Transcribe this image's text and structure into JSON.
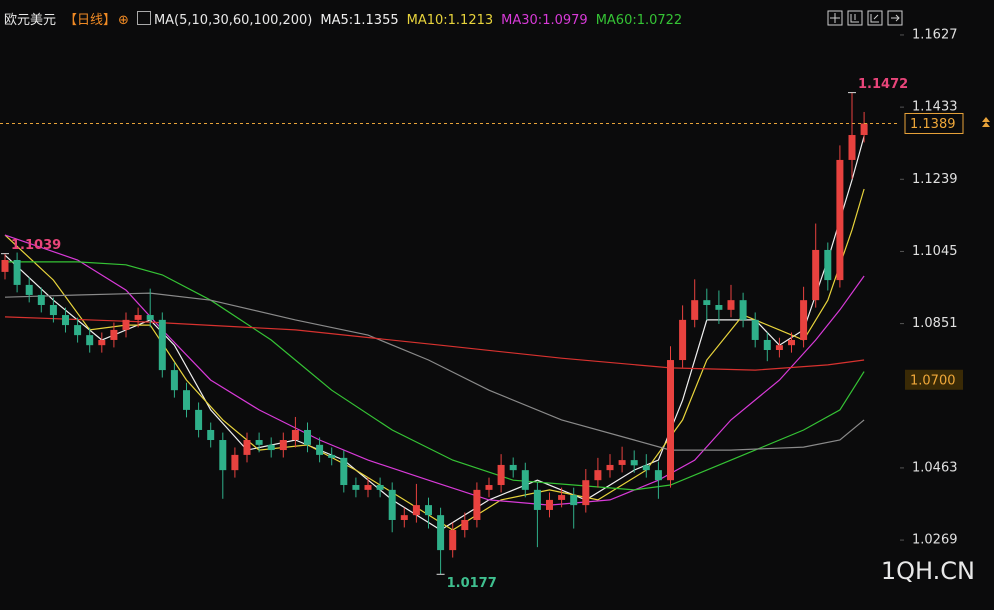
{
  "chart_data": {
    "type": "candlestick",
    "title": "欧元美元",
    "period": "【日线】",
    "indicator": "MA(5,10,30,60,100,200)",
    "up_color": "#e8423f",
    "down_color": "#2fb08a",
    "ylim": [
      1.0081,
      1.1721
    ],
    "yticks": [
      1.0269,
      1.0463,
      1.0851,
      1.1045,
      1.1239,
      1.1433,
      1.1627
    ],
    "open": [
      1.099,
      1.1022,
      1.0955,
      1.0928,
      1.0901,
      1.0874,
      1.0847,
      1.082,
      1.0793,
      1.0807,
      1.0834,
      1.0861,
      1.0874,
      1.0861,
      1.0726,
      1.0672,
      1.0619,
      1.0565,
      1.0538,
      1.0457,
      1.0498,
      1.0538,
      1.0525,
      1.0511,
      1.0538,
      1.0565,
      1.0525,
      1.0498,
      1.049,
      1.0417,
      1.0404,
      1.0417,
      1.0404,
      1.0323,
      1.0336,
      1.0363,
      1.0336,
      1.0242,
      1.0296,
      1.0323,
      1.0404,
      1.0417,
      1.0471,
      1.0457,
      1.0404,
      1.035,
      1.0377,
      1.039,
      1.0363,
      1.043,
      1.0457,
      1.0471,
      1.0484,
      1.047,
      1.0457,
      1.043,
      1.0753,
      1.0861,
      1.0914,
      1.0901,
      1.0888,
      1.0914,
      1.0861,
      1.0807,
      1.078,
      1.0793,
      1.0807,
      1.0914,
      1.1049,
      1.0968,
      1.1291,
      1.1358
    ],
    "high": [
      1.1039,
      1.1042,
      1.0975,
      1.0948,
      1.0921,
      1.0894,
      1.0867,
      1.084,
      1.0827,
      1.0854,
      1.0881,
      1.0894,
      1.0945,
      1.0881,
      1.0746,
      1.0692,
      1.0639,
      1.0585,
      1.0558,
      1.0518,
      1.0558,
      1.0558,
      1.0545,
      1.0558,
      1.06,
      1.0585,
      1.0545,
      1.0518,
      1.051,
      1.0437,
      1.0437,
      1.0437,
      1.0424,
      1.0356,
      1.042,
      1.0383,
      1.0356,
      1.0316,
      1.0343,
      1.0424,
      1.0437,
      1.05,
      1.0491,
      1.0477,
      1.0424,
      1.0397,
      1.041,
      1.041,
      1.046,
      1.049,
      1.05,
      1.052,
      1.051,
      1.05,
      1.048,
      1.079,
      1.09,
      1.097,
      1.0945,
      1.094,
      1.0955,
      1.0934,
      1.0881,
      1.0827,
      1.0813,
      1.0827,
      1.095,
      1.112,
      1.1069,
      1.133,
      1.1472,
      1.142
    ],
    "low": [
      1.097,
      1.0935,
      1.0908,
      1.0881,
      1.0854,
      1.0827,
      1.08,
      1.0773,
      1.0773,
      1.0787,
      1.0814,
      1.0841,
      1.0841,
      1.0706,
      1.0652,
      1.0599,
      1.0545,
      1.0518,
      1.038,
      1.0437,
      1.0478,
      1.0505,
      1.0491,
      1.0491,
      1.0518,
      1.0505,
      1.0478,
      1.047,
      1.0397,
      1.0384,
      1.0384,
      1.0384,
      1.029,
      1.0303,
      1.0316,
      1.03,
      1.0177,
      1.0222,
      1.0276,
      1.0303,
      1.0384,
      1.0397,
      1.0437,
      1.0384,
      1.025,
      1.033,
      1.0357,
      1.03,
      1.0343,
      1.041,
      1.0437,
      1.0451,
      1.045,
      1.0437,
      1.038,
      1.041,
      1.0733,
      1.0841,
      1.086,
      1.085,
      1.0868,
      1.0841,
      1.0787,
      1.075,
      1.076,
      1.0773,
      1.0787,
      1.0894,
      1.094,
      1.0948,
      1.124,
      1.1338
    ],
    "close": [
      1.1022,
      1.0955,
      1.0928,
      1.0901,
      1.0874,
      1.0847,
      1.082,
      1.0793,
      1.0807,
      1.0834,
      1.0861,
      1.0874,
      1.0861,
      1.0726,
      1.0672,
      1.0619,
      1.0565,
      1.0538,
      1.0457,
      1.0498,
      1.0538,
      1.0525,
      1.0511,
      1.0538,
      1.0565,
      1.0525,
      1.0498,
      1.049,
      1.0417,
      1.0404,
      1.0417,
      1.0404,
      1.0323,
      1.0336,
      1.0363,
      1.0336,
      1.0242,
      1.0296,
      1.0323,
      1.0404,
      1.0417,
      1.0471,
      1.0457,
      1.0404,
      1.035,
      1.0377,
      1.039,
      1.0363,
      1.043,
      1.0457,
      1.0471,
      1.0484,
      1.047,
      1.0457,
      1.043,
      1.0753,
      1.0861,
      1.0914,
      1.0901,
      1.0888,
      1.0914,
      1.0861,
      1.0807,
      1.078,
      1.0793,
      1.0807,
      1.0914,
      1.1049,
      1.0968,
      1.1291,
      1.1358,
      1.1389
    ],
    "series": [
      {
        "name": "MA5:1.1355",
        "color": "#f0f0f0",
        "x": [
          0,
          4,
          8,
          12,
          14,
          17,
          20,
          24,
          28,
          32,
          36,
          40,
          44,
          48,
          52,
          54,
          56,
          58,
          62,
          64,
          66,
          68,
          70,
          71
        ],
        "values": [
          1.1035,
          1.0914,
          1.0807,
          1.0861,
          1.0793,
          1.0619,
          1.0511,
          1.0538,
          1.0484,
          1.0377,
          1.0296,
          1.0377,
          1.043,
          1.0377,
          1.0457,
          1.0484,
          1.0645,
          1.0861,
          1.0861,
          1.0793,
          1.0834,
          1.1022,
          1.1237,
          1.1355
        ]
      },
      {
        "name": "MA10:1.1213",
        "color": "#e8d43c",
        "x": [
          0,
          4,
          7,
          10,
          12,
          15,
          18,
          21,
          25,
          29,
          33,
          37,
          41,
          45,
          49,
          53,
          56,
          58,
          61,
          64,
          66,
          68,
          70,
          71
        ],
        "values": [
          1.1089,
          1.0968,
          1.0834,
          1.0847,
          1.0847,
          1.0699,
          1.0592,
          1.0511,
          1.0525,
          1.0457,
          1.0377,
          1.0296,
          1.0377,
          1.0404,
          1.0377,
          1.0457,
          1.0592,
          1.0753,
          1.0874,
          1.0834,
          1.0807,
          1.0914,
          1.1103,
          1.1213
        ]
      },
      {
        "name": "MA30:1.0979",
        "color": "#d83ad8",
        "x": [
          0,
          6,
          10,
          13,
          17,
          21,
          26,
          30,
          35,
          40,
          45,
          50,
          54,
          57,
          60,
          64,
          67,
          69,
          71
        ],
        "values": [
          1.1089,
          1.1022,
          1.0941,
          1.0834,
          1.0699,
          1.0619,
          1.0538,
          1.0484,
          1.043,
          1.0377,
          1.0363,
          1.0377,
          1.043,
          1.0484,
          1.0592,
          1.0699,
          1.0807,
          1.0888,
          1.0979
        ]
      },
      {
        "name": "MA60:1.0722",
        "color": "#35c335",
        "x": [
          0,
          6,
          10,
          13,
          17,
          22,
          27,
          32,
          37,
          42,
          47,
          52,
          55,
          58,
          62,
          66,
          69,
          71
        ],
        "values": [
          1.1017,
          1.1017,
          1.1009,
          1.0982,
          1.0914,
          1.0807,
          1.0672,
          1.0565,
          1.0484,
          1.043,
          1.0417,
          1.0404,
          1.0417,
          1.0457,
          1.0511,
          1.0565,
          1.0619,
          1.0722
        ]
      },
      {
        "color": "#8a8a8a",
        "x": [
          0,
          6,
          12,
          17,
          24,
          30,
          35,
          40,
          46,
          52,
          55,
          60,
          66,
          69,
          71
        ],
        "values": [
          1.0922,
          1.0928,
          1.0933,
          1.0914,
          1.0861,
          1.082,
          1.0753,
          1.0672,
          1.0592,
          1.0538,
          1.0511,
          1.0511,
          1.0519,
          1.0538,
          1.0592
        ]
      },
      {
        "color": "#d8322f",
        "x": [
          0,
          12,
          24,
          36,
          46,
          55,
          62,
          68,
          71
        ],
        "values": [
          1.0869,
          1.0855,
          1.0834,
          1.0793,
          1.0758,
          1.0732,
          1.0726,
          1.074,
          1.0753
        ]
      }
    ],
    "high_annotations": [
      1.1039,
      1.1472
    ],
    "low_annotations": [
      1.0177
    ],
    "last_price": 1.1389,
    "cursor_price": {
      "value": 1.07,
      "label": "1.0700"
    },
    "watermark": "1QH.CN"
  }
}
